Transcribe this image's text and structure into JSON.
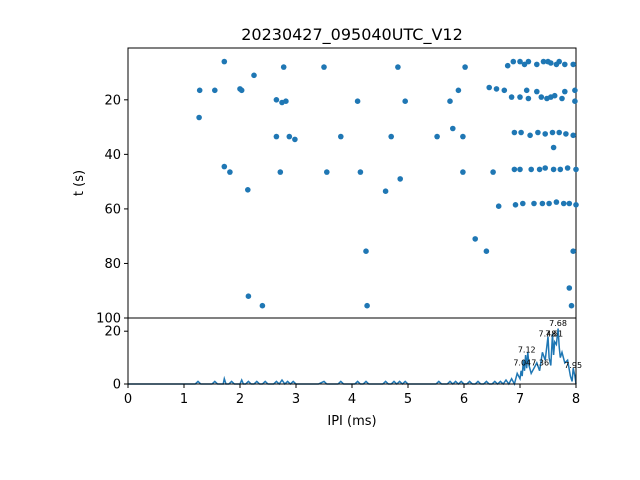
{
  "chart_data": [
    {
      "type": "scatter",
      "title": "20230427_095040UTC_V12",
      "ylabel": "t (s)",
      "xlim": [
        0,
        8
      ],
      "ylim": [
        100,
        1
      ],
      "y_inverted": true,
      "yticks": [
        "20",
        "40",
        "60",
        "80",
        "100"
      ],
      "color": "#1f77b4",
      "points": [
        [
          1.28,
          16.5
        ],
        [
          1.27,
          26.5
        ],
        [
          1.55,
          16.5
        ],
        [
          1.72,
          6
        ],
        [
          1.72,
          44.5
        ],
        [
          1.82,
          46.5
        ],
        [
          2.0,
          16
        ],
        [
          2.03,
          16.5
        ],
        [
          2.14,
          53
        ],
        [
          2.15,
          92
        ],
        [
          2.25,
          11
        ],
        [
          2.4,
          95.5
        ],
        [
          2.65,
          20
        ],
        [
          2.65,
          33.5
        ],
        [
          2.72,
          46.5
        ],
        [
          2.75,
          21
        ],
        [
          2.78,
          8
        ],
        [
          2.82,
          20.5
        ],
        [
          2.88,
          33.5
        ],
        [
          2.98,
          34.5
        ],
        [
          3.5,
          8
        ],
        [
          3.55,
          46.5
        ],
        [
          3.8,
          33.5
        ],
        [
          4.1,
          20.5
        ],
        [
          4.15,
          46.5
        ],
        [
          4.25,
          75.5
        ],
        [
          4.27,
          95.5
        ],
        [
          4.6,
          53.5
        ],
        [
          4.7,
          33.5
        ],
        [
          4.82,
          8
        ],
        [
          4.86,
          49
        ],
        [
          4.95,
          20.5
        ],
        [
          5.52,
          33.5
        ],
        [
          5.75,
          20.5
        ],
        [
          5.8,
          30.5
        ],
        [
          5.9,
          16.5
        ],
        [
          5.98,
          33.5
        ],
        [
          5.98,
          46.5
        ],
        [
          6.02,
          8
        ],
        [
          6.2,
          71
        ],
        [
          6.4,
          75.5
        ],
        [
          6.45,
          15.5
        ],
        [
          6.52,
          46.5
        ],
        [
          6.58,
          16
        ],
        [
          6.62,
          59
        ],
        [
          6.72,
          16.5
        ],
        [
          6.78,
          7.5
        ],
        [
          6.85,
          19
        ],
        [
          6.88,
          6
        ],
        [
          6.9,
          32
        ],
        [
          6.9,
          45.5
        ],
        [
          6.92,
          58.5
        ],
        [
          7.0,
          6
        ],
        [
          7.0,
          19
        ],
        [
          7.0,
          45.5
        ],
        [
          7.02,
          32
        ],
        [
          7.05,
          58
        ],
        [
          7.08,
          7
        ],
        [
          7.12,
          16.5
        ],
        [
          7.15,
          6
        ],
        [
          7.15,
          19.5
        ],
        [
          7.18,
          33
        ],
        [
          7.2,
          45.5
        ],
        [
          7.25,
          58
        ],
        [
          7.3,
          7
        ],
        [
          7.3,
          17
        ],
        [
          7.32,
          32
        ],
        [
          7.35,
          45.5
        ],
        [
          7.38,
          19
        ],
        [
          7.4,
          58
        ],
        [
          7.42,
          6
        ],
        [
          7.45,
          32.5
        ],
        [
          7.45,
          45
        ],
        [
          7.48,
          19.5
        ],
        [
          7.5,
          6
        ],
        [
          7.52,
          58
        ],
        [
          7.55,
          6.5
        ],
        [
          7.55,
          19
        ],
        [
          7.58,
          32
        ],
        [
          7.6,
          37.5
        ],
        [
          7.6,
          45.5
        ],
        [
          7.62,
          18.5
        ],
        [
          7.65,
          7
        ],
        [
          7.65,
          57.5
        ],
        [
          7.7,
          6
        ],
        [
          7.7,
          32
        ],
        [
          7.72,
          45.5
        ],
        [
          7.75,
          19.5
        ],
        [
          7.78,
          58
        ],
        [
          7.8,
          7
        ],
        [
          7.8,
          17
        ],
        [
          7.82,
          32.5
        ],
        [
          7.85,
          45
        ],
        [
          7.88,
          58
        ],
        [
          7.88,
          89
        ],
        [
          7.92,
          95.5
        ],
        [
          7.95,
          7
        ],
        [
          7.95,
          33
        ],
        [
          7.95,
          75.5
        ],
        [
          7.98,
          16.5
        ],
        [
          7.98,
          20.5
        ],
        [
          8.0,
          45.5
        ],
        [
          8.0,
          58.5
        ]
      ]
    },
    {
      "type": "line",
      "xlabel": "IPI (ms)",
      "xlim": [
        0,
        8
      ],
      "ylim": [
        0,
        25
      ],
      "xticks": [
        "0",
        "1",
        "2",
        "3",
        "4",
        "5",
        "6",
        "7",
        "8"
      ],
      "yticks": [
        "0",
        "20"
      ],
      "color": "#1f77b4",
      "x": [
        0,
        1.2,
        1.25,
        1.3,
        1.4,
        1.5,
        1.55,
        1.6,
        1.7,
        1.72,
        1.75,
        1.8,
        1.85,
        1.9,
        2.0,
        2.03,
        2.06,
        2.1,
        2.15,
        2.2,
        2.25,
        2.3,
        2.35,
        2.4,
        2.45,
        2.5,
        2.6,
        2.65,
        2.7,
        2.75,
        2.8,
        2.85,
        2.9,
        2.95,
        3.0,
        3.1,
        3.4,
        3.5,
        3.55,
        3.6,
        3.75,
        3.8,
        3.85,
        4.05,
        4.1,
        4.15,
        4.2,
        4.25,
        4.3,
        4.55,
        4.6,
        4.65,
        4.7,
        4.75,
        4.8,
        4.85,
        4.9,
        4.95,
        5.0,
        5.5,
        5.55,
        5.6,
        5.7,
        5.75,
        5.8,
        5.85,
        5.9,
        5.95,
        6.0,
        6.05,
        6.1,
        6.15,
        6.2,
        6.25,
        6.3,
        6.35,
        6.4,
        6.45,
        6.5,
        6.55,
        6.6,
        6.65,
        6.7,
        6.75,
        6.8,
        6.85,
        6.9,
        6.95,
        7.0,
        7.02,
        7.04,
        7.06,
        7.08,
        7.1,
        7.12,
        7.14,
        7.16,
        7.2,
        7.25,
        7.3,
        7.35,
        7.4,
        7.45,
        7.5,
        7.52,
        7.55,
        7.58,
        7.6,
        7.62,
        7.65,
        7.68,
        7.7,
        7.72,
        7.75,
        7.8,
        7.85,
        7.9,
        7.93,
        7.95,
        7.98,
        8.0
      ],
      "y": [
        0,
        0,
        1,
        0,
        0,
        0,
        1,
        0,
        0,
        2,
        0,
        0,
        1,
        0,
        0,
        1.5,
        0,
        0,
        1,
        0,
        0,
        1,
        0,
        0,
        1,
        0,
        0,
        1,
        0,
        1.5,
        0,
        1,
        0,
        1,
        0,
        0,
        0,
        1,
        0,
        0,
        0,
        1,
        0,
        0,
        1,
        0,
        0,
        1,
        0,
        0,
        1,
        0,
        0,
        1,
        0,
        1,
        0,
        1,
        0,
        0,
        1,
        0,
        0,
        1,
        0,
        1,
        0,
        1,
        0,
        0,
        1,
        0,
        0,
        1,
        0,
        0,
        1,
        0,
        0,
        1,
        0,
        1,
        0,
        1.5,
        0,
        2,
        0,
        4,
        2,
        5,
        3,
        9,
        5,
        11,
        6,
        12,
        7,
        4,
        6,
        8,
        5,
        12,
        9,
        18,
        10,
        7,
        19,
        11,
        16,
        15,
        21,
        14,
        10,
        12,
        8,
        9,
        3,
        1,
        6,
        3,
        0
      ]
    }
  ],
  "peak_labels": [
    {
      "text": "7.68",
      "x": 7.68,
      "y": 22
    },
    {
      "text": "7.48",
      "x": 7.49,
      "y": 18
    },
    {
      "text": "7.61",
      "x": 7.61,
      "y": 18
    },
    {
      "text": "7.12",
      "x": 7.12,
      "y": 12
    },
    {
      "text": "7.04",
      "x": 7.04,
      "y": 7
    },
    {
      "text": "7.36",
      "x": 7.36,
      "y": 7
    },
    {
      "text": "7.95",
      "x": 7.95,
      "y": 6
    }
  ]
}
